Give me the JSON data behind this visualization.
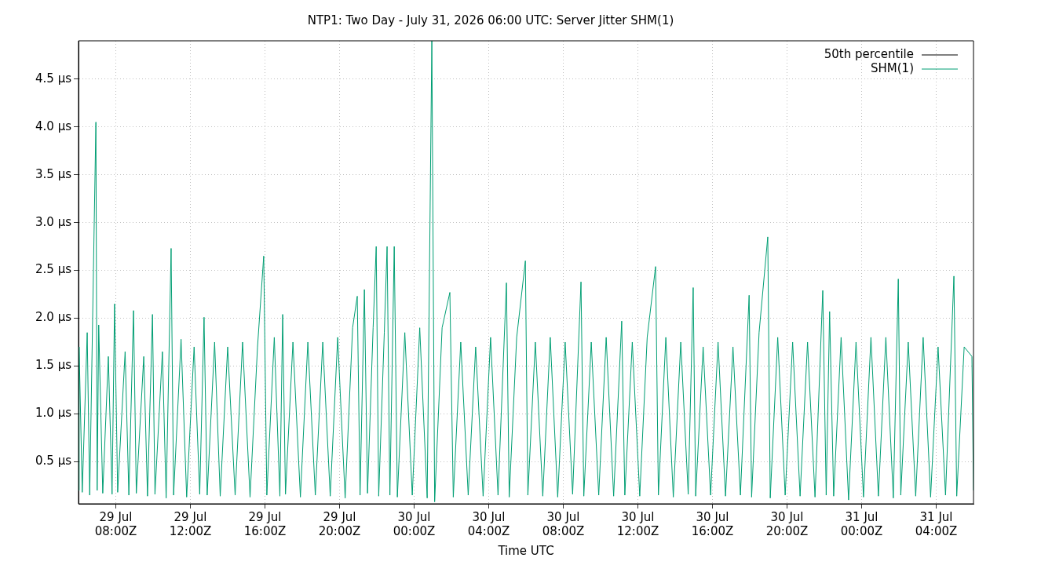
{
  "chart_data": {
    "type": "line",
    "title": "NTP1: Two Day - July 31, 2026 06:00 UTC: Server Jitter SHM(1)",
    "xlabel": "Time UTC",
    "xlim": [
      "2026-07-29T06:00",
      "2026-07-31T06:00"
    ],
    "xticks": [
      {
        "value": "2026-07-29T08:00",
        "label": "29 Jul\n08:00Z"
      },
      {
        "value": "2026-07-29T12:00",
        "label": "29 Jul\n12:00Z"
      },
      {
        "value": "2026-07-29T16:00",
        "label": "29 Jul\n16:00Z"
      },
      {
        "value": "2026-07-29T20:00",
        "label": "29 Jul\n20:00Z"
      },
      {
        "value": "2026-07-30T00:00",
        "label": "30 Jul\n00:00Z"
      },
      {
        "value": "2026-07-30T04:00",
        "label": "30 Jul\n04:00Z"
      },
      {
        "value": "2026-07-30T08:00",
        "label": "30 Jul\n08:00Z"
      },
      {
        "value": "2026-07-30T12:00",
        "label": "30 Jul\n12:00Z"
      },
      {
        "value": "2026-07-30T16:00",
        "label": "30 Jul\n16:00Z"
      },
      {
        "value": "2026-07-30T20:00",
        "label": "30 Jul\n20:00Z"
      },
      {
        "value": "2026-07-31T00:00",
        "label": "31 Jul\n00:00Z"
      },
      {
        "value": "2026-07-31T04:00",
        "label": "31 Jul\n04:00Z"
      }
    ],
    "ylim": [
      0.06,
      4.9
    ],
    "yticks": [
      {
        "value": 0.5,
        "label": "0.5 µs"
      },
      {
        "value": 1,
        "label": "1.0 µs"
      },
      {
        "value": 1.5,
        "label": "1.5 µs"
      },
      {
        "value": 2,
        "label": "2.0 µs"
      },
      {
        "value": 2.5,
        "label": "2.5 µs"
      },
      {
        "value": 3,
        "label": "3.0 µs"
      },
      {
        "value": 3.5,
        "label": "3.5 µs"
      },
      {
        "value": 4,
        "label": "4.0 µs"
      },
      {
        "value": 4.5,
        "label": "4.5 µs"
      }
    ],
    "grid": true,
    "legend": "top right",
    "marker": "none",
    "line_style": "solid",
    "series": [
      {
        "name": "50th percentile",
        "color": "#000000"
      },
      {
        "name": "SHM(1)",
        "color": "#009e73",
        "x": [
          "2026-07-29T06:00",
          "2026-07-29T06:02",
          "2026-07-29T06:12",
          "2026-07-29T06:28",
          "2026-07-29T06:36",
          "2026-07-29T06:56",
          "2026-07-29T07:00",
          "2026-07-29T07:05",
          "2026-07-29T07:18",
          "2026-07-29T07:36",
          "2026-07-29T07:48",
          "2026-07-29T07:56",
          "2026-07-29T08:06",
          "2026-07-29T08:30",
          "2026-07-29T08:42",
          "2026-07-29T08:57",
          "2026-07-29T09:06",
          "2026-07-29T09:30",
          "2026-07-29T09:42",
          "2026-07-29T09:58",
          "2026-07-29T10:06",
          "2026-07-29T10:30",
          "2026-07-29T10:42",
          "2026-07-29T10:58",
          "2026-07-29T11:06",
          "2026-07-29T11:30",
          "2026-07-29T11:48",
          "2026-07-29T12:12",
          "2026-07-29T12:30",
          "2026-07-29T12:44",
          "2026-07-29T12:54",
          "2026-07-29T13:18",
          "2026-07-29T13:36",
          "2026-07-29T14:00",
          "2026-07-29T14:24",
          "2026-07-29T14:48",
          "2026-07-29T15:12",
          "2026-07-29T15:36",
          "2026-07-29T15:56",
          "2026-07-29T16:06",
          "2026-07-29T16:30",
          "2026-07-29T16:48",
          "2026-07-29T16:57",
          "2026-07-29T17:06",
          "2026-07-29T17:30",
          "2026-07-29T17:54",
          "2026-07-29T18:18",
          "2026-07-29T18:42",
          "2026-07-29T19:06",
          "2026-07-29T19:30",
          "2026-07-29T19:54",
          "2026-07-29T20:18",
          "2026-07-29T20:42",
          "2026-07-29T20:57",
          "2026-07-29T21:06",
          "2026-07-29T21:20",
          "2026-07-29T21:30",
          "2026-07-29T21:48",
          "2026-07-29T21:58",
          "2026-07-29T22:06",
          "2026-07-29T22:24",
          "2026-07-29T22:33",
          "2026-07-29T22:42",
          "2026-07-29T22:56",
          "2026-07-29T23:06",
          "2026-07-29T23:30",
          "2026-07-29T23:54",
          "2026-07-30T00:18",
          "2026-07-30T00:42",
          "2026-07-30T00:57",
          "2026-07-30T01:06",
          "2026-07-30T01:30",
          "2026-07-30T01:55",
          "2026-07-30T02:06",
          "2026-07-30T02:30",
          "2026-07-30T02:54",
          "2026-07-30T03:18",
          "2026-07-30T03:42",
          "2026-07-30T04:06",
          "2026-07-30T04:30",
          "2026-07-30T04:57",
          "2026-07-30T05:06",
          "2026-07-30T05:30",
          "2026-07-30T05:58",
          "2026-07-30T06:06",
          "2026-07-30T06:30",
          "2026-07-30T06:54",
          "2026-07-30T07:18",
          "2026-07-30T07:42",
          "2026-07-30T08:06",
          "2026-07-30T08:30",
          "2026-07-30T08:57",
          "2026-07-30T09:06",
          "2026-07-30T09:30",
          "2026-07-30T09:54",
          "2026-07-30T10:18",
          "2026-07-30T10:42",
          "2026-07-30T11:08",
          "2026-07-30T11:18",
          "2026-07-30T11:42",
          "2026-07-30T12:06",
          "2026-07-30T12:30",
          "2026-07-30T12:57",
          "2026-07-30T13:06",
          "2026-07-30T13:30",
          "2026-07-30T13:54",
          "2026-07-30T14:18",
          "2026-07-30T14:42",
          "2026-07-30T14:58",
          "2026-07-30T15:06",
          "2026-07-30T15:30",
          "2026-07-30T15:54",
          "2026-07-30T16:18",
          "2026-07-30T16:42",
          "2026-07-30T17:06",
          "2026-07-30T17:30",
          "2026-07-30T17:58",
          "2026-07-30T18:06",
          "2026-07-30T18:30",
          "2026-07-30T18:58",
          "2026-07-30T19:06",
          "2026-07-30T19:30",
          "2026-07-30T19:54",
          "2026-07-30T20:18",
          "2026-07-30T20:42",
          "2026-07-30T21:06",
          "2026-07-30T21:30",
          "2026-07-30T21:55",
          "2026-07-30T22:06",
          "2026-07-30T22:17",
          "2026-07-30T22:30",
          "2026-07-30T22:54",
          "2026-07-30T23:18",
          "2026-07-30T23:42",
          "2026-07-31T00:06",
          "2026-07-31T00:30",
          "2026-07-31T00:54",
          "2026-07-31T01:18",
          "2026-07-31T01:42",
          "2026-07-31T01:58",
          "2026-07-31T02:06",
          "2026-07-31T02:30",
          "2026-07-31T02:54",
          "2026-07-31T03:18",
          "2026-07-31T03:42",
          "2026-07-31T04:06",
          "2026-07-31T04:30",
          "2026-07-31T04:57",
          "2026-07-31T05:06",
          "2026-07-31T05:30",
          "2026-07-31T05:55",
          "2026-07-31T06:00"
        ],
        "values": [
          0.2,
          1.7,
          0.18,
          1.85,
          0.15,
          4.05,
          0.2,
          1.93,
          0.17,
          1.6,
          0.16,
          2.15,
          0.18,
          1.65,
          0.15,
          2.08,
          0.17,
          1.6,
          0.14,
          2.04,
          0.16,
          1.65,
          0.12,
          2.73,
          0.15,
          1.78,
          0.13,
          1.7,
          0.16,
          2.01,
          0.15,
          1.75,
          0.14,
          1.7,
          0.15,
          1.75,
          0.13,
          1.7,
          2.65,
          0.15,
          1.8,
          0.14,
          2.04,
          0.16,
          1.75,
          0.13,
          1.75,
          0.15,
          1.75,
          0.14,
          1.8,
          0.12,
          1.9,
          2.23,
          0.15,
          2.3,
          0.17,
          1.9,
          2.75,
          0.14,
          1.85,
          2.75,
          0.15,
          2.75,
          0.13,
          1.85,
          0.15,
          1.9,
          0.12,
          4.9,
          0.08,
          1.9,
          2.27,
          0.13,
          1.75,
          0.15,
          1.7,
          0.14,
          1.8,
          0.15,
          2.37,
          0.13,
          1.8,
          2.6,
          0.15,
          1.75,
          0.14,
          1.8,
          0.13,
          1.75,
          0.16,
          2.38,
          0.14,
          1.75,
          0.15,
          1.8,
          0.14,
          1.97,
          0.15,
          1.75,
          0.14,
          1.8,
          2.54,
          0.15,
          1.8,
          0.13,
          1.75,
          0.16,
          2.32,
          0.14,
          1.7,
          0.15,
          1.75,
          0.14,
          1.7,
          0.15,
          2.24,
          0.13,
          1.85,
          2.85,
          0.12,
          1.8,
          0.15,
          1.75,
          0.14,
          1.75,
          0.13,
          2.29,
          0.15,
          2.07,
          0.14,
          1.8,
          0.1,
          1.75,
          0.13,
          1.8,
          0.14,
          1.8,
          0.12,
          2.41,
          0.15,
          1.75,
          0.14,
          1.8,
          0.13,
          1.7,
          0.15,
          2.44,
          0.14,
          1.7,
          1.6,
          0.2
        ]
      }
    ]
  }
}
